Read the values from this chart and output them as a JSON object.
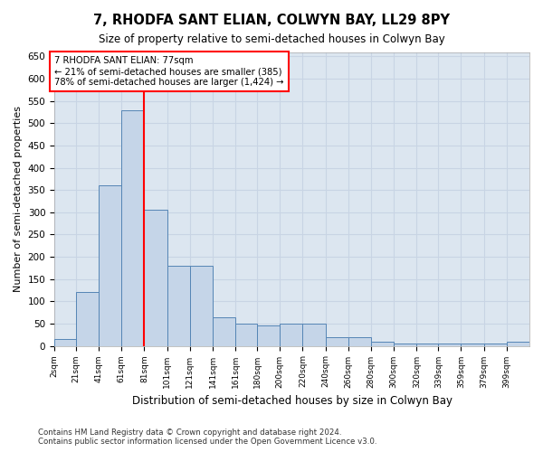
{
  "title": "7, RHODFA SANT ELIAN, COLWYN BAY, LL29 8PY",
  "subtitle": "Size of property relative to semi-detached houses in Colwyn Bay",
  "xlabel": "Distribution of semi-detached houses by size in Colwyn Bay",
  "ylabel": "Number of semi-detached properties",
  "footnote1": "Contains HM Land Registry data © Crown copyright and database right 2024.",
  "footnote2": "Contains public sector information licensed under the Open Government Licence v3.0.",
  "categories": [
    "2sqm",
    "21sqm",
    "41sqm",
    "61sqm",
    "81sqm",
    "101sqm",
    "121sqm",
    "141sqm",
    "161sqm",
    "180sqm",
    "200sqm",
    "220sqm",
    "240sqm",
    "260sqm",
    "280sqm",
    "300sqm",
    "320sqm",
    "339sqm",
    "359sqm",
    "379sqm",
    "399sqm"
  ],
  "values": [
    15,
    120,
    360,
    530,
    305,
    180,
    180,
    65,
    50,
    45,
    50,
    50,
    20,
    20,
    10,
    5,
    5,
    5,
    5,
    5,
    10
  ],
  "bar_color": "#c5d5e8",
  "bar_edge_color": "#5585b5",
  "bar_edge_width": 0.7,
  "grid_color": "#c8d4e4",
  "background_color": "#dce6f0",
  "annotation_text": "7 RHODFA SANT ELIAN: 77sqm\n← 21% of semi-detached houses are smaller (385)\n78% of semi-detached houses are larger (1,424) →",
  "annotation_box_color": "white",
  "annotation_box_edge": "red",
  "vline_color": "red",
  "vline_x_index": 3,
  "ylim": [
    0,
    660
  ],
  "yticks": [
    0,
    50,
    100,
    150,
    200,
    250,
    300,
    350,
    400,
    450,
    500,
    550,
    600,
    650
  ]
}
